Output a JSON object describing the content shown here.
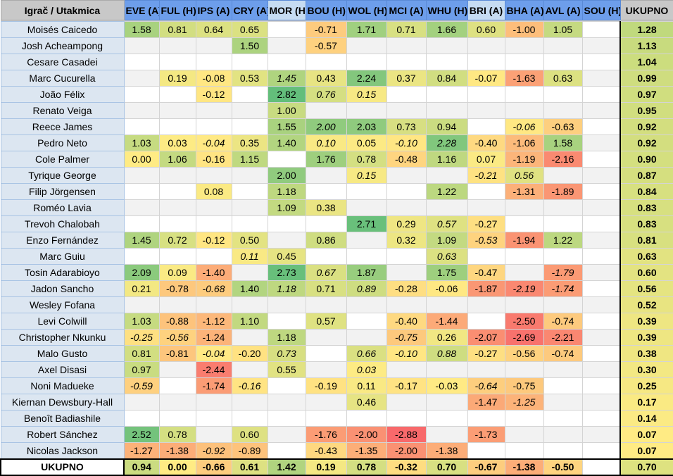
{
  "header": {
    "corner": "Igrač / Utakmica",
    "total": "UKUPNO",
    "matches": [
      "EVE (A)",
      "FUL (H)",
      "IPS (A)",
      "CRY (A)",
      "MOR (H)",
      "BOU (H)",
      "WOL (H)",
      "MCI (A)",
      "WHU (H)",
      "BRI (A)",
      "BHA (A)",
      "AVL (A)",
      "SOU (H)"
    ],
    "light_columns": [
      4,
      9
    ]
  },
  "colors": {
    "neg": "#f8696b",
    "mid": "#ffeb84",
    "pos": "#63be7b",
    "header": "#6d9eeb"
  },
  "rows": [
    {
      "name": "Moisés Caicedo",
      "cells": [
        "1.58",
        "0.81",
        "0.64",
        "0.65",
        "",
        "-0.71",
        "1.71",
        "0.71",
        "1.66",
        "0.60",
        "-1.00",
        "1.05",
        ""
      ],
      "italic": [],
      "total": "1.28"
    },
    {
      "name": "Josh Acheampong",
      "cells": [
        "",
        "",
        "",
        "1.50",
        "",
        "-0.57",
        "",
        "",
        "",
        "",
        "",
        "",
        ""
      ],
      "italic": [],
      "total": "1.13"
    },
    {
      "name": "Cesare Casadei",
      "cells": [
        "",
        "",
        "",
        "",
        "",
        "",
        "",
        "",
        "",
        "",
        "",
        "",
        ""
      ],
      "italic": [],
      "total": "1.04"
    },
    {
      "name": "Marc Cucurella",
      "cells": [
        "",
        "0.19",
        "-0.08",
        "0.53",
        "1.45",
        "0.43",
        "2.24",
        "0.37",
        "0.84",
        "-0.07",
        "-1.63",
        "0.63",
        ""
      ],
      "italic": [
        4
      ],
      "total": "0.99"
    },
    {
      "name": "João Félix",
      "cells": [
        "",
        "",
        "-0.12",
        "",
        "2.82",
        "0.76",
        "0.15",
        "",
        "",
        "",
        "",
        "",
        ""
      ],
      "italic": [
        5,
        6
      ],
      "total": "0.97"
    },
    {
      "name": "Renato Veiga",
      "cells": [
        "",
        "",
        "",
        "",
        "1.00",
        "",
        "",
        "",
        "",
        "",
        "",
        "",
        ""
      ],
      "italic": [],
      "total": "0.95"
    },
    {
      "name": "Reece James",
      "cells": [
        "",
        "",
        "",
        "",
        "1.55",
        "2.00",
        "2.03",
        "0.73",
        "0.94",
        "",
        "-0.06",
        "-0.63",
        ""
      ],
      "italic": [
        5,
        10
      ],
      "total": "0.92"
    },
    {
      "name": "Pedro Neto",
      "cells": [
        "1.03",
        "0.03",
        "-0.04",
        "0.35",
        "1.40",
        "0.10",
        "0.05",
        "-0.10",
        "2.28",
        "-0.40",
        "-1.06",
        "1.58",
        ""
      ],
      "italic": [
        2,
        5,
        7,
        8
      ],
      "total": "0.92"
    },
    {
      "name": "Cole Palmer",
      "cells": [
        "0.00",
        "1.06",
        "-0.16",
        "1.15",
        "",
        "1.76",
        "0.78",
        "-0.48",
        "1.16",
        "0.07",
        "-1.19",
        "-2.16",
        ""
      ],
      "italic": [],
      "total": "0.90"
    },
    {
      "name": "Tyrique George",
      "cells": [
        "",
        "",
        "",
        "",
        "2.00",
        "",
        "0.15",
        "",
        "",
        "-0.21",
        "0.56",
        "",
        ""
      ],
      "italic": [
        6,
        9,
        10
      ],
      "total": "0.87"
    },
    {
      "name": "Filip Jörgensen",
      "cells": [
        "",
        "",
        "0.08",
        "",
        "1.18",
        "",
        "",
        "",
        "1.22",
        "",
        "-1.31",
        "-1.89",
        ""
      ],
      "italic": [],
      "total": "0.84"
    },
    {
      "name": "Roméo Lavia",
      "cells": [
        "",
        "",
        "",
        "",
        "1.09",
        "0.38",
        "",
        "",
        "",
        "",
        "",
        "",
        ""
      ],
      "italic": [],
      "total": "0.83"
    },
    {
      "name": "Trevoh Chalobah",
      "cells": [
        "",
        "",
        "",
        "",
        "",
        "",
        "2.71",
        "0.29",
        "0.57",
        "-0.27",
        "",
        "",
        ""
      ],
      "italic": [
        8
      ],
      "total": "0.83"
    },
    {
      "name": "Enzo Fernández",
      "cells": [
        "1.45",
        "0.72",
        "-0.12",
        "0.50",
        "",
        "0.86",
        "",
        "0.32",
        "1.09",
        "-0.53",
        "-1.94",
        "1.22",
        ""
      ],
      "italic": [
        9
      ],
      "total": "0.81"
    },
    {
      "name": "Marc Guiu",
      "cells": [
        "",
        "",
        "",
        "0.11",
        "0.45",
        "",
        "",
        "",
        "0.63",
        "",
        "",
        "",
        ""
      ],
      "italic": [
        3,
        8
      ],
      "total": "0.63"
    },
    {
      "name": "Tosin Adarabioyo",
      "cells": [
        "2.09",
        "0.09",
        "-1.40",
        "",
        "2.73",
        "0.67",
        "1.87",
        "",
        "1.75",
        "-0.47",
        "",
        "-1.79",
        ""
      ],
      "italic": [
        5,
        11
      ],
      "total": "0.60"
    },
    {
      "name": "Jadon Sancho",
      "cells": [
        "0.21",
        "-0.78",
        "-0.68",
        "1.40",
        "1.18",
        "0.71",
        "0.89",
        "-0.28",
        "-0.06",
        "-1.87",
        "-2.19",
        "-1.74",
        ""
      ],
      "italic": [
        2,
        4,
        6,
        10,
        11
      ],
      "total": "0.56"
    },
    {
      "name": "Wesley Fofana",
      "cells": [
        "",
        "",
        "",
        "",
        "",
        "",
        "",
        "",
        "",
        "",
        "",
        "",
        ""
      ],
      "italic": [],
      "total": "0.52"
    },
    {
      "name": "Levi Colwill",
      "cells": [
        "1.03",
        "-0.88",
        "-1.12",
        "1.10",
        "",
        "0.57",
        "",
        "-0.40",
        "-1.44",
        "",
        "-2.50",
        "-0.74",
        ""
      ],
      "italic": [],
      "total": "0.39"
    },
    {
      "name": "Christopher Nkunku",
      "cells": [
        "-0.25",
        "-0.56",
        "-1.24",
        "",
        "1.18",
        "",
        "",
        "-0.75",
        "0.26",
        "-2.07",
        "-2.69",
        "-2.21",
        ""
      ],
      "italic": [
        0,
        1,
        7
      ],
      "total": "0.39"
    },
    {
      "name": "Malo Gusto",
      "cells": [
        "0.81",
        "-0.81",
        "-0.04",
        "-0.20",
        "0.73",
        "",
        "0.66",
        "-0.10",
        "0.88",
        "-0.27",
        "-0.56",
        "-0.74",
        ""
      ],
      "italic": [
        2,
        4,
        6,
        7,
        8
      ],
      "total": "0.38"
    },
    {
      "name": "Axel Disasi",
      "cells": [
        "0.97",
        "",
        "-2.44",
        "",
        "0.55",
        "",
        "0.03",
        "",
        "",
        "",
        "",
        "",
        ""
      ],
      "italic": [
        6
      ],
      "total": "0.30"
    },
    {
      "name": "Noni Madueke",
      "cells": [
        "-0.59",
        "",
        "-1.74",
        "-0.16",
        "",
        "-0.19",
        "0.11",
        "-0.17",
        "-0.03",
        "-0.64",
        "-0.75",
        "",
        ""
      ],
      "italic": [
        0,
        3,
        9
      ],
      "total": "0.25"
    },
    {
      "name": "Kiernan Dewsbury-Hall",
      "cells": [
        "",
        "",
        "",
        "",
        "",
        "",
        "0.46",
        "",
        "",
        "-1.47",
        "-1.25",
        "",
        ""
      ],
      "italic": [
        10
      ],
      "total": "0.17"
    },
    {
      "name": "Benoît Badiashile",
      "cells": [
        "",
        "",
        "",
        "",
        "",
        "",
        "",
        "",
        "",
        "",
        "",
        "",
        ""
      ],
      "italic": [],
      "total": "0.14"
    },
    {
      "name": "Robert Sánchez",
      "cells": [
        "2.52",
        "0.78",
        "",
        "0.60",
        "",
        "-1.76",
        "-2.00",
        "-2.88",
        "",
        "-1.73",
        "",
        "",
        ""
      ],
      "italic": [],
      "total": "0.07"
    },
    {
      "name": "Nicolas Jackson",
      "cells": [
        "-1.27",
        "-1.38",
        "-0.92",
        "-0.89",
        "",
        "-0.43",
        "-1.35",
        "-2.00",
        "-1.38",
        "",
        "",
        "",
        ""
      ],
      "italic": [
        2
      ],
      "total": "0.07"
    }
  ],
  "totals": {
    "label": "UKUPNO",
    "cells": [
      "0.94",
      "0.00",
      "-0.66",
      "0.61",
      "1.42",
      "0.19",
      "0.78",
      "-0.32",
      "0.70",
      "-0.67",
      "-1.38",
      "-0.50",
      ""
    ],
    "total": "0.70"
  }
}
